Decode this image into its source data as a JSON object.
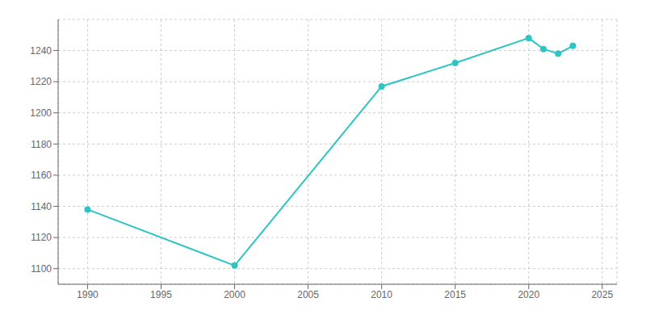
{
  "chart_data": {
    "type": "line",
    "x": [
      1990,
      2000,
      2010,
      2015,
      2020,
      2021,
      2022,
      2023
    ],
    "values": [
      1138,
      1102,
      1217,
      1232,
      1248,
      1241,
      1238,
      1243
    ],
    "color": "#2EC4C4",
    "marker": "circle",
    "xlim": [
      1988,
      2026
    ],
    "ylim": [
      1090,
      1260
    ],
    "xticks": [
      1990,
      1995,
      2000,
      2005,
      2010,
      2015,
      2020,
      2025
    ],
    "yticks": [
      1100,
      1120,
      1140,
      1160,
      1180,
      1200,
      1220,
      1240
    ],
    "grid": true
  }
}
